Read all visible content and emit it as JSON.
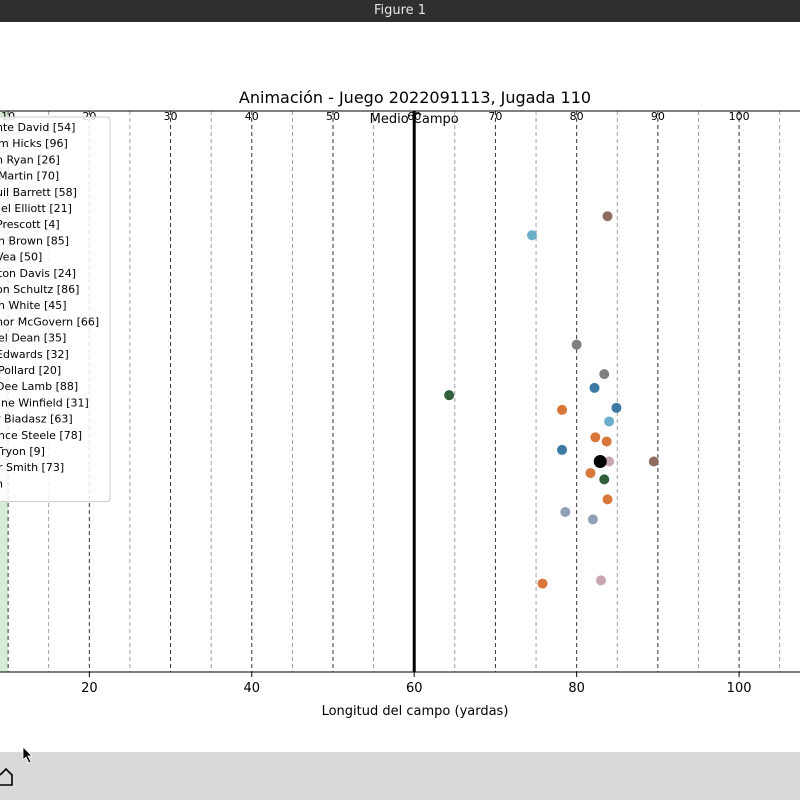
{
  "window": {
    "title": "Figure 1"
  },
  "chart_data": {
    "type": "scatter",
    "title": "Animación - Juego 2022091113, Jugada 110",
    "xlabel": "Longitud del campo (yardas)",
    "ylabel": "",
    "xlim": [
      9,
      107.5
    ],
    "ylim": [
      0,
      53.3
    ],
    "xticks": [
      20,
      40,
      60,
      80,
      100
    ],
    "top_labels": [
      "10",
      "20",
      "30",
      "40",
      "50",
      "60",
      "70",
      "80",
      "90",
      "100"
    ],
    "midfield_label": "Medio Campo",
    "midfield_x": 60,
    "endzone": {
      "x_start": 0,
      "x_end": 10,
      "color": "#d5ecd5"
    },
    "grid": true,
    "legend_placement": "upper-left",
    "legend": [
      "nte David [54]",
      "m Hicks [96]",
      "n Ryan [26]",
      "Martin [70]",
      "uil Barrett [58]",
      "iel Elliott [21]",
      "Prescott [4]",
      "n Brown [85]",
      "Vea [50]",
      "ton Davis [24]",
      "on Schultz [86]",
      "n White [45]",
      "nor McGovern [66]",
      "el Dean [35]",
      "Edwards [32]",
      "Pollard [20]",
      "Dee Lamb [88]",
      "ine Winfield [31]",
      "r Biadasz [63]",
      "nce Steele [78]",
      "Tryon [9]",
      "r Smith [73]",
      "n"
    ],
    "points": [
      {
        "x": 83.8,
        "y": 43.3,
        "color": "#8c6d5f"
      },
      {
        "x": 74.5,
        "y": 41.5,
        "color": "#6aaec8"
      },
      {
        "x": 80.0,
        "y": 31.1,
        "color": "#7f7f7f"
      },
      {
        "x": 83.4,
        "y": 28.3,
        "color": "#7f7f7f"
      },
      {
        "x": 64.3,
        "y": 26.3,
        "color": "#2e5e3a"
      },
      {
        "x": 82.2,
        "y": 27.0,
        "color": "#3a7aa5"
      },
      {
        "x": 84.9,
        "y": 25.1,
        "color": "#3a7aa5"
      },
      {
        "x": 78.2,
        "y": 24.9,
        "color": "#d9773a"
      },
      {
        "x": 84.0,
        "y": 23.8,
        "color": "#6aaec8"
      },
      {
        "x": 82.3,
        "y": 22.3,
        "color": "#d9773a"
      },
      {
        "x": 83.7,
        "y": 21.9,
        "color": "#d9773a"
      },
      {
        "x": 78.2,
        "y": 21.1,
        "color": "#3a7aa5"
      },
      {
        "x": 89.5,
        "y": 20.0,
        "color": "#8c6d5f"
      },
      {
        "x": 84.0,
        "y": 20.0,
        "color": "#c9a6b4"
      },
      {
        "x": 81.7,
        "y": 18.9,
        "color": "#d9773a"
      },
      {
        "x": 83.4,
        "y": 18.3,
        "color": "#2e5e3a"
      },
      {
        "x": 83.8,
        "y": 16.4,
        "color": "#d9773a"
      },
      {
        "x": 78.6,
        "y": 15.2,
        "color": "#8fa0b4"
      },
      {
        "x": 82.0,
        "y": 14.5,
        "color": "#8fa0b4"
      },
      {
        "x": 83.0,
        "y": 8.7,
        "color": "#c9a6b4"
      },
      {
        "x": 75.8,
        "y": 8.4,
        "color": "#d9773a"
      }
    ],
    "ball": {
      "x": 82.9,
      "y": 20.0,
      "color": "#000000"
    }
  }
}
